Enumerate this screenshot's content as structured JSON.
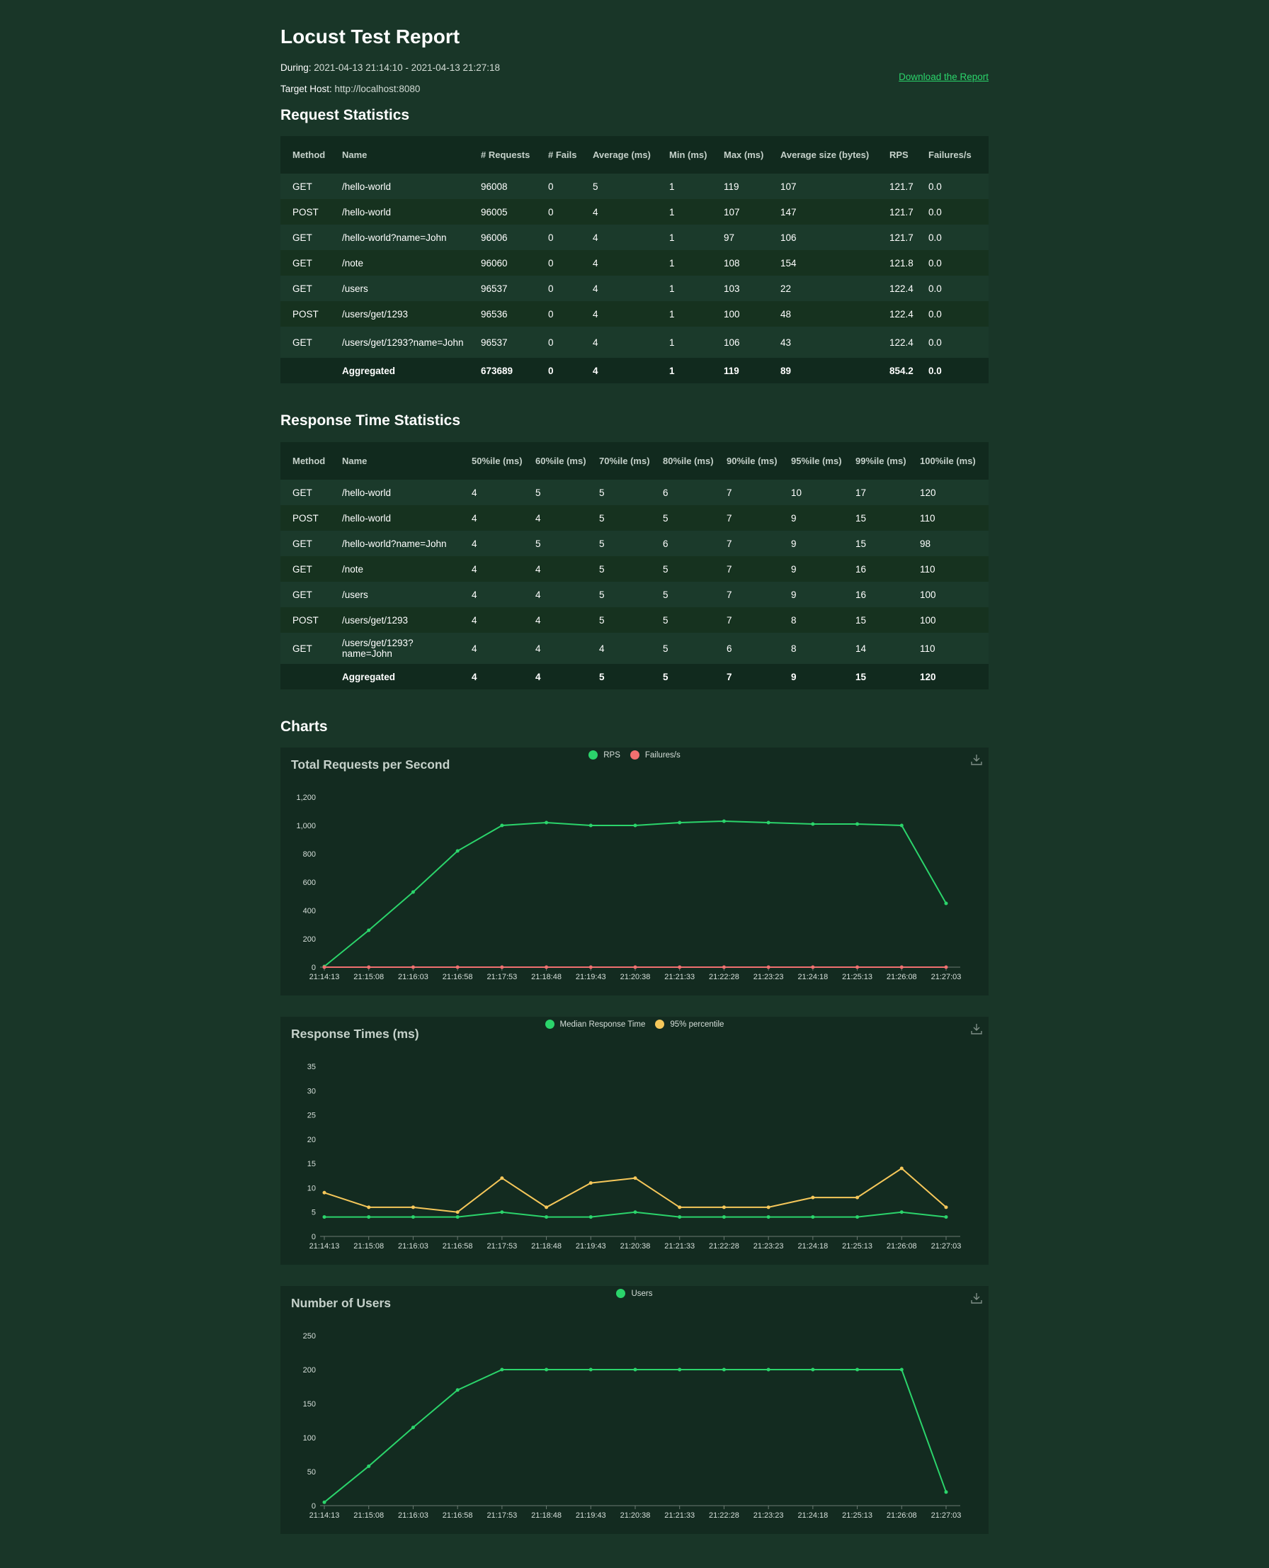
{
  "report": {
    "title": "Locust Test Report",
    "during_label": "During:",
    "during_value": "2021-04-13 21:14:10 - 2021-04-13 21:27:18",
    "host_label": "Target Host:",
    "host_value": "http://localhost:8080",
    "download_label": "Download the Report"
  },
  "request_stats": {
    "heading": "Request Statistics",
    "columns": [
      "Method",
      "Name",
      "# Requests",
      "# Fails",
      "Average (ms)",
      "Min (ms)",
      "Max (ms)",
      "Average size (bytes)",
      "RPS",
      "Failures/s"
    ],
    "rows": [
      [
        "GET",
        "/hello-world",
        "96008",
        "0",
        "5",
        "1",
        "119",
        "107",
        "121.7",
        "0.0"
      ],
      [
        "POST",
        "/hello-world",
        "96005",
        "0",
        "4",
        "1",
        "107",
        "147",
        "121.7",
        "0.0"
      ],
      [
        "GET",
        "/hello-world?name=John",
        "96006",
        "0",
        "4",
        "1",
        "97",
        "106",
        "121.7",
        "0.0"
      ],
      [
        "GET",
        "/note",
        "96060",
        "0",
        "4",
        "1",
        "108",
        "154",
        "121.8",
        "0.0"
      ],
      [
        "GET",
        "/users",
        "96537",
        "0",
        "4",
        "1",
        "103",
        "22",
        "122.4",
        "0.0"
      ],
      [
        "POST",
        "/users/get/1293",
        "96536",
        "0",
        "4",
        "1",
        "100",
        "48",
        "122.4",
        "0.0"
      ],
      [
        "GET",
        "/users/get/1293?name=John",
        "96537",
        "0",
        "4",
        "1",
        "106",
        "43",
        "122.4",
        "0.0"
      ]
    ],
    "aggregated": [
      "",
      "Aggregated",
      "673689",
      "0",
      "4",
      "1",
      "119",
      "89",
      "854.2",
      "0.0"
    ]
  },
  "response_stats": {
    "heading": "Response Time Statistics",
    "columns": [
      "Method",
      "Name",
      "50%ile (ms)",
      "60%ile (ms)",
      "70%ile (ms)",
      "80%ile (ms)",
      "90%ile (ms)",
      "95%ile (ms)",
      "99%ile (ms)",
      "100%ile (ms)"
    ],
    "rows": [
      [
        "GET",
        "/hello-world",
        "4",
        "5",
        "5",
        "6",
        "7",
        "10",
        "17",
        "120"
      ],
      [
        "POST",
        "/hello-world",
        "4",
        "4",
        "5",
        "5",
        "7",
        "9",
        "15",
        "110"
      ],
      [
        "GET",
        "/hello-world?name=John",
        "4",
        "5",
        "5",
        "6",
        "7",
        "9",
        "15",
        "98"
      ],
      [
        "GET",
        "/note",
        "4",
        "4",
        "5",
        "5",
        "7",
        "9",
        "16",
        "110"
      ],
      [
        "GET",
        "/users",
        "4",
        "4",
        "5",
        "5",
        "7",
        "9",
        "16",
        "100"
      ],
      [
        "POST",
        "/users/get/1293",
        "4",
        "4",
        "5",
        "5",
        "7",
        "8",
        "15",
        "100"
      ],
      [
        "GET",
        "/users/get/1293?name=John",
        "4",
        "4",
        "4",
        "5",
        "6",
        "8",
        "14",
        "110"
      ]
    ],
    "aggregated": [
      "",
      "Aggregated",
      "4",
      "4",
      "5",
      "5",
      "7",
      "9",
      "15",
      "120"
    ]
  },
  "charts_heading": "Charts",
  "chart_data": [
    {
      "type": "line",
      "title": "Total Requests per Second",
      "x": [
        "21:14:13",
        "21:15:08",
        "21:16:03",
        "21:16:58",
        "21:17:53",
        "21:18:48",
        "21:19:43",
        "21:20:38",
        "21:21:33",
        "21:22:28",
        "21:23:23",
        "21:24:18",
        "21:25:13",
        "21:26:08",
        "21:27:03"
      ],
      "ylim": [
        0,
        1200
      ],
      "yticks": [
        0,
        200,
        400,
        600,
        800,
        1000,
        1200
      ],
      "ytick_labels": [
        "0",
        "200",
        "400",
        "600",
        "800",
        "1,000",
        "1,200"
      ],
      "legend_position": "top-center",
      "series": [
        {
          "name": "RPS",
          "color": "#2bd46b",
          "values": [
            5,
            260,
            530,
            820,
            1000,
            1020,
            1000,
            1000,
            1020,
            1030,
            1020,
            1010,
            1010,
            1000,
            450
          ]
        },
        {
          "name": "Failures/s",
          "color": "#f07070",
          "values": [
            0,
            0,
            0,
            0,
            0,
            0,
            0,
            0,
            0,
            0,
            0,
            0,
            0,
            0,
            0
          ]
        }
      ]
    },
    {
      "type": "line",
      "title": "Response Times (ms)",
      "x": [
        "21:14:13",
        "21:15:08",
        "21:16:03",
        "21:16:58",
        "21:17:53",
        "21:18:48",
        "21:19:43",
        "21:20:38",
        "21:21:33",
        "21:22:28",
        "21:23:23",
        "21:24:18",
        "21:25:13",
        "21:26:08",
        "21:27:03"
      ],
      "ylim": [
        0,
        35
      ],
      "yticks": [
        0,
        5,
        10,
        15,
        20,
        25,
        30,
        35
      ],
      "ytick_labels": [
        "0",
        "5",
        "10",
        "15",
        "20",
        "25",
        "30",
        "35"
      ],
      "legend_position": "top-center",
      "series": [
        {
          "name": "Median Response Time",
          "color": "#2bd46b",
          "values": [
            4,
            4,
            4,
            4,
            5,
            4,
            4,
            5,
            4,
            4,
            4,
            4,
            4,
            5,
            4
          ]
        },
        {
          "name": "95% percentile",
          "color": "#f5c75a",
          "values": [
            9,
            6,
            6,
            5,
            12,
            6,
            11,
            12,
            6,
            6,
            6,
            8,
            8,
            14,
            6
          ]
        }
      ]
    },
    {
      "type": "line",
      "title": "Number of Users",
      "x": [
        "21:14:13",
        "21:15:08",
        "21:16:03",
        "21:16:58",
        "21:17:53",
        "21:18:48",
        "21:19:43",
        "21:20:38",
        "21:21:33",
        "21:22:28",
        "21:23:23",
        "21:24:18",
        "21:25:13",
        "21:26:08",
        "21:27:03"
      ],
      "ylim": [
        0,
        250
      ],
      "yticks": [
        0,
        50,
        100,
        150,
        200,
        250
      ],
      "ytick_labels": [
        "0",
        "50",
        "100",
        "150",
        "200",
        "250"
      ],
      "legend_position": "top-center",
      "series": [
        {
          "name": "Users",
          "color": "#2bd46b",
          "values": [
            5,
            58,
            115,
            170,
            200,
            200,
            200,
            200,
            200,
            200,
            200,
            200,
            200,
            200,
            20
          ]
        }
      ]
    }
  ]
}
